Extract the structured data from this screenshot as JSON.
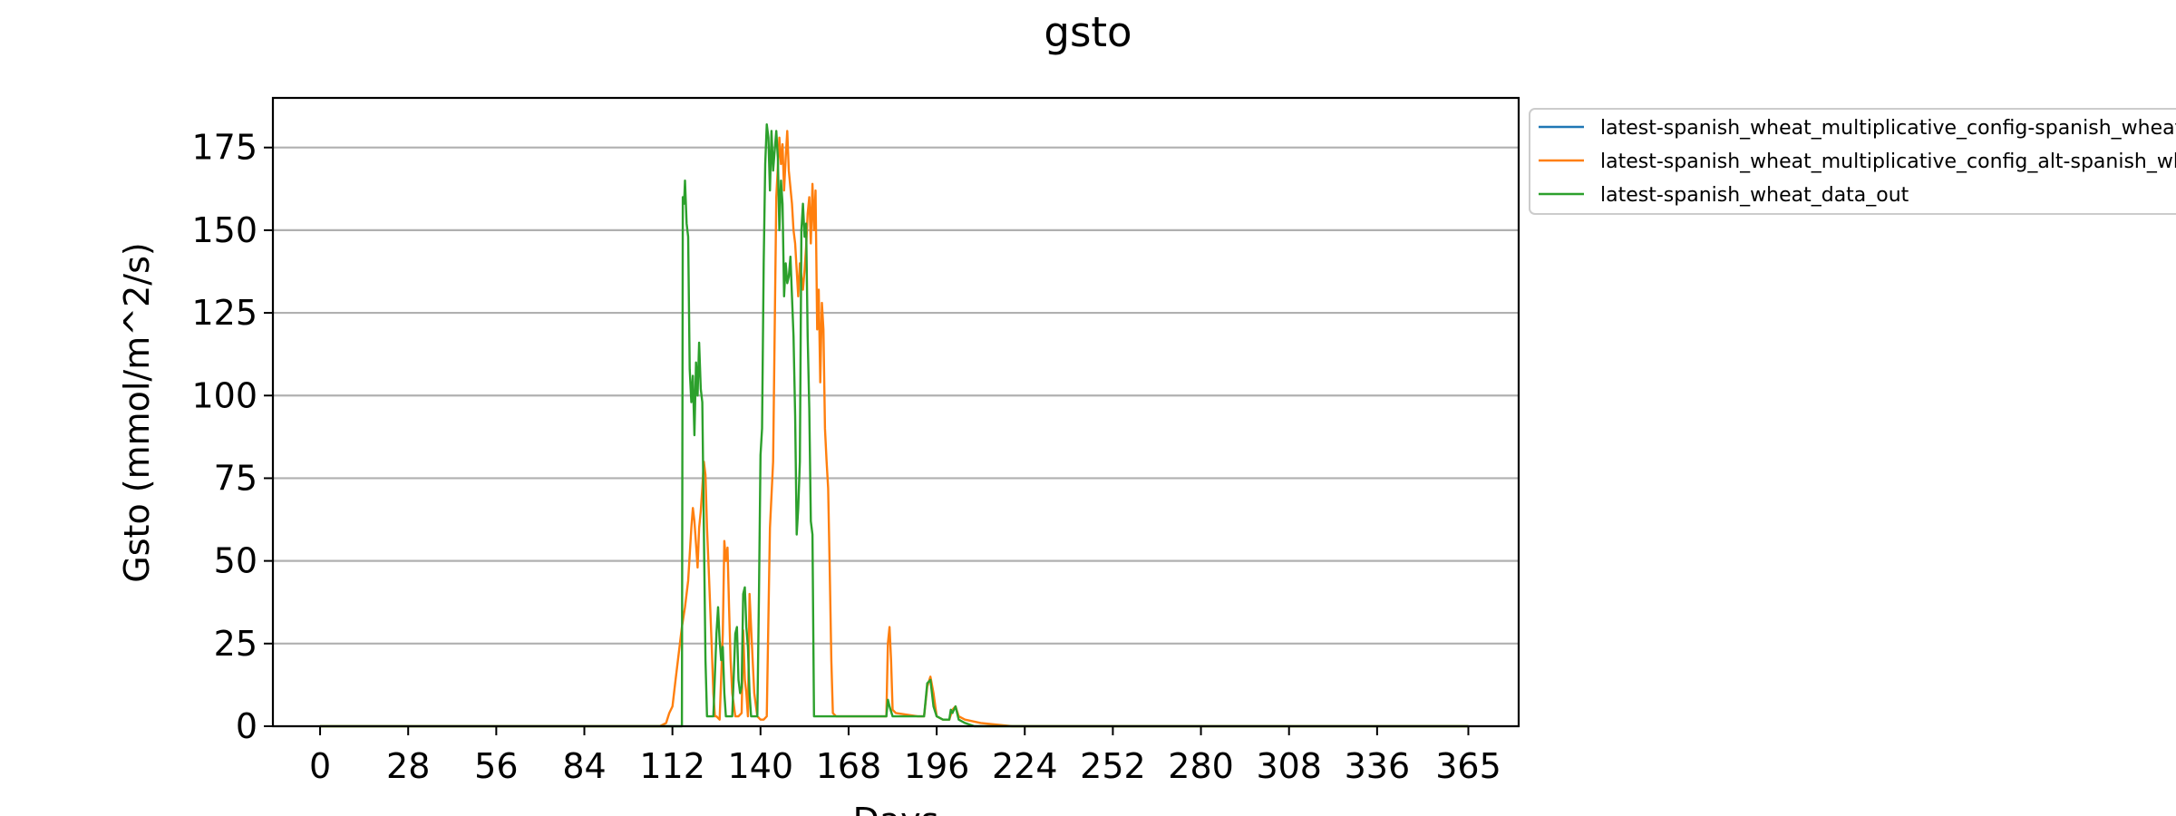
{
  "chart_data": {
    "type": "line",
    "title": "gsto",
    "xlabel": "Days",
    "ylabel": "Gsto (mmol/m^2/s)",
    "xlim": [
      -15,
      381
    ],
    "ylim": [
      0,
      190
    ],
    "xticks": [
      0,
      28,
      56,
      84,
      112,
      140,
      168,
      196,
      224,
      252,
      280,
      308,
      336,
      365
    ],
    "yticks": [
      0,
      25,
      50,
      75,
      100,
      125,
      150,
      175
    ],
    "grid": "horizontal",
    "legend_position": "outside-top-right",
    "series": [
      {
        "name": "latest-spanish_wheat_multiplicative_config-spanish_wheat_data_out",
        "color": "#1f77b4",
        "points": []
      },
      {
        "name": "latest-spanish_wheat_multiplicative_config_alt-spanish_wheat_data_out",
        "color": "#ff7f0e",
        "points": [
          [
            0,
            0
          ],
          [
            108,
            0
          ],
          [
            110,
            1
          ],
          [
            111,
            4
          ],
          [
            112,
            6
          ],
          [
            113,
            14
          ],
          [
            114,
            22
          ],
          [
            115,
            30
          ],
          [
            116,
            36
          ],
          [
            117,
            44
          ],
          [
            118,
            60
          ],
          [
            118.5,
            66
          ],
          [
            119,
            62
          ],
          [
            119.5,
            55
          ],
          [
            120,
            48
          ],
          [
            120.5,
            60
          ],
          [
            121,
            65
          ],
          [
            121.5,
            72
          ],
          [
            122,
            80
          ],
          [
            122.5,
            76
          ],
          [
            123,
            60
          ],
          [
            123.5,
            48
          ],
          [
            124,
            36
          ],
          [
            124.5,
            24
          ],
          [
            125,
            10
          ],
          [
            125.5,
            3
          ],
          [
            126,
            3
          ],
          [
            127,
            2
          ],
          [
            128,
            28
          ],
          [
            128.5,
            56
          ],
          [
            129,
            50
          ],
          [
            129.5,
            54
          ],
          [
            130,
            36
          ],
          [
            130.5,
            20
          ],
          [
            131,
            10
          ],
          [
            132,
            3
          ],
          [
            133,
            3
          ],
          [
            134,
            4
          ],
          [
            134.5,
            29
          ],
          [
            135,
            14
          ],
          [
            135.5,
            10
          ],
          [
            136,
            3
          ],
          [
            136.5,
            40
          ],
          [
            137,
            30
          ],
          [
            138,
            10
          ],
          [
            139,
            3
          ],
          [
            140,
            2
          ],
          [
            141,
            2
          ],
          [
            142,
            3
          ],
          [
            143,
            60
          ],
          [
            144,
            80
          ],
          [
            145,
            160
          ],
          [
            146,
            178
          ],
          [
            146.5,
            170
          ],
          [
            147,
            176
          ],
          [
            147.5,
            162
          ],
          [
            148,
            172
          ],
          [
            148.5,
            180
          ],
          [
            149,
            168
          ],
          [
            150,
            158
          ],
          [
            150.5,
            150
          ],
          [
            151,
            146
          ],
          [
            151.5,
            138
          ],
          [
            152,
            130
          ],
          [
            152.5,
            140
          ],
          [
            153,
            136
          ],
          [
            153.5,
            132
          ],
          [
            154,
            138
          ],
          [
            154.5,
            145
          ],
          [
            155,
            155
          ],
          [
            155.5,
            160
          ],
          [
            156,
            146
          ],
          [
            156.5,
            164
          ],
          [
            157,
            150
          ],
          [
            157.5,
            162
          ],
          [
            158,
            120
          ],
          [
            158.5,
            132
          ],
          [
            159,
            104
          ],
          [
            159.5,
            128
          ],
          [
            160,
            120
          ],
          [
            160.5,
            90
          ],
          [
            161,
            80
          ],
          [
            161.5,
            72
          ],
          [
            162,
            48
          ],
          [
            162.5,
            20
          ],
          [
            163,
            4
          ],
          [
            164,
            3
          ],
          [
            168,
            3
          ],
          [
            180,
            3
          ],
          [
            180.5,
            25
          ],
          [
            181,
            30
          ],
          [
            181.5,
            20
          ],
          [
            182,
            5
          ],
          [
            183,
            4
          ],
          [
            190,
            3
          ],
          [
            192,
            3
          ],
          [
            193,
            12
          ],
          [
            194,
            15
          ],
          [
            195,
            10
          ],
          [
            196,
            3
          ],
          [
            198,
            2
          ],
          [
            200,
            2
          ],
          [
            201,
            5
          ],
          [
            202,
            6
          ],
          [
            203,
            3
          ],
          [
            205,
            2
          ],
          [
            210,
            1
          ],
          [
            220,
            0
          ],
          [
            365,
            0
          ]
        ]
      },
      {
        "name": "latest-spanish_wheat_data_out",
        "color": "#2ca02c",
        "points": [
          [
            0,
            0
          ],
          [
            113,
            0
          ],
          [
            115,
            0
          ],
          [
            115.3,
            160
          ],
          [
            115.7,
            158
          ],
          [
            116,
            165
          ],
          [
            116.5,
            152
          ],
          [
            117,
            148
          ],
          [
            117.5,
            108
          ],
          [
            118,
            98
          ],
          [
            118.5,
            106
          ],
          [
            119,
            88
          ],
          [
            119.5,
            110
          ],
          [
            120,
            100
          ],
          [
            120.5,
            116
          ],
          [
            121,
            102
          ],
          [
            121.5,
            98
          ],
          [
            122,
            60
          ],
          [
            122.5,
            20
          ],
          [
            123,
            3
          ],
          [
            124,
            3
          ],
          [
            125,
            3
          ],
          [
            126,
            28
          ],
          [
            126.5,
            36
          ],
          [
            127,
            26
          ],
          [
            127.5,
            20
          ],
          [
            128,
            24
          ],
          [
            128.5,
            10
          ],
          [
            129,
            3
          ],
          [
            130,
            3
          ],
          [
            131,
            3
          ],
          [
            132,
            28
          ],
          [
            132.5,
            30
          ],
          [
            133,
            14
          ],
          [
            133.5,
            10
          ],
          [
            134,
            12
          ],
          [
            134.5,
            40
          ],
          [
            135,
            42
          ],
          [
            135.5,
            30
          ],
          [
            136,
            24
          ],
          [
            136.5,
            10
          ],
          [
            137,
            3
          ],
          [
            138,
            3
          ],
          [
            139,
            3
          ],
          [
            139.5,
            40
          ],
          [
            140,
            82
          ],
          [
            140.5,
            90
          ],
          [
            141,
            140
          ],
          [
            141.5,
            170
          ],
          [
            142,
            182
          ],
          [
            142.5,
            178
          ],
          [
            143,
            162
          ],
          [
            143.5,
            180
          ],
          [
            144,
            168
          ],
          [
            144.5,
            174
          ],
          [
            145,
            180
          ],
          [
            145.5,
            172
          ],
          [
            146,
            150
          ],
          [
            146.5,
            165
          ],
          [
            147,
            158
          ],
          [
            147.5,
            130
          ],
          [
            148,
            140
          ],
          [
            148.5,
            134
          ],
          [
            149,
            136
          ],
          [
            149.5,
            142
          ],
          [
            150,
            130
          ],
          [
            150.5,
            118
          ],
          [
            151,
            94
          ],
          [
            151.5,
            58
          ],
          [
            152,
            66
          ],
          [
            152.5,
            80
          ],
          [
            153,
            150
          ],
          [
            153.5,
            158
          ],
          [
            154,
            148
          ],
          [
            154.5,
            152
          ],
          [
            155,
            118
          ],
          [
            155.5,
            96
          ],
          [
            156,
            62
          ],
          [
            156.5,
            58
          ],
          [
            157,
            3
          ],
          [
            158,
            3
          ],
          [
            160,
            3
          ],
          [
            165,
            3
          ],
          [
            170,
            3
          ],
          [
            175,
            3
          ],
          [
            180,
            3
          ],
          [
            180.5,
            8
          ],
          [
            181,
            6
          ],
          [
            182,
            3
          ],
          [
            190,
            3
          ],
          [
            192,
            3
          ],
          [
            193,
            13
          ],
          [
            194,
            14
          ],
          [
            195,
            6
          ],
          [
            196,
            3
          ],
          [
            198,
            2
          ],
          [
            200,
            2
          ],
          [
            200.5,
            5
          ],
          [
            201,
            4
          ],
          [
            202,
            6
          ],
          [
            203,
            2
          ],
          [
            205,
            1
          ],
          [
            208,
            0
          ],
          [
            365,
            0
          ]
        ]
      }
    ]
  }
}
